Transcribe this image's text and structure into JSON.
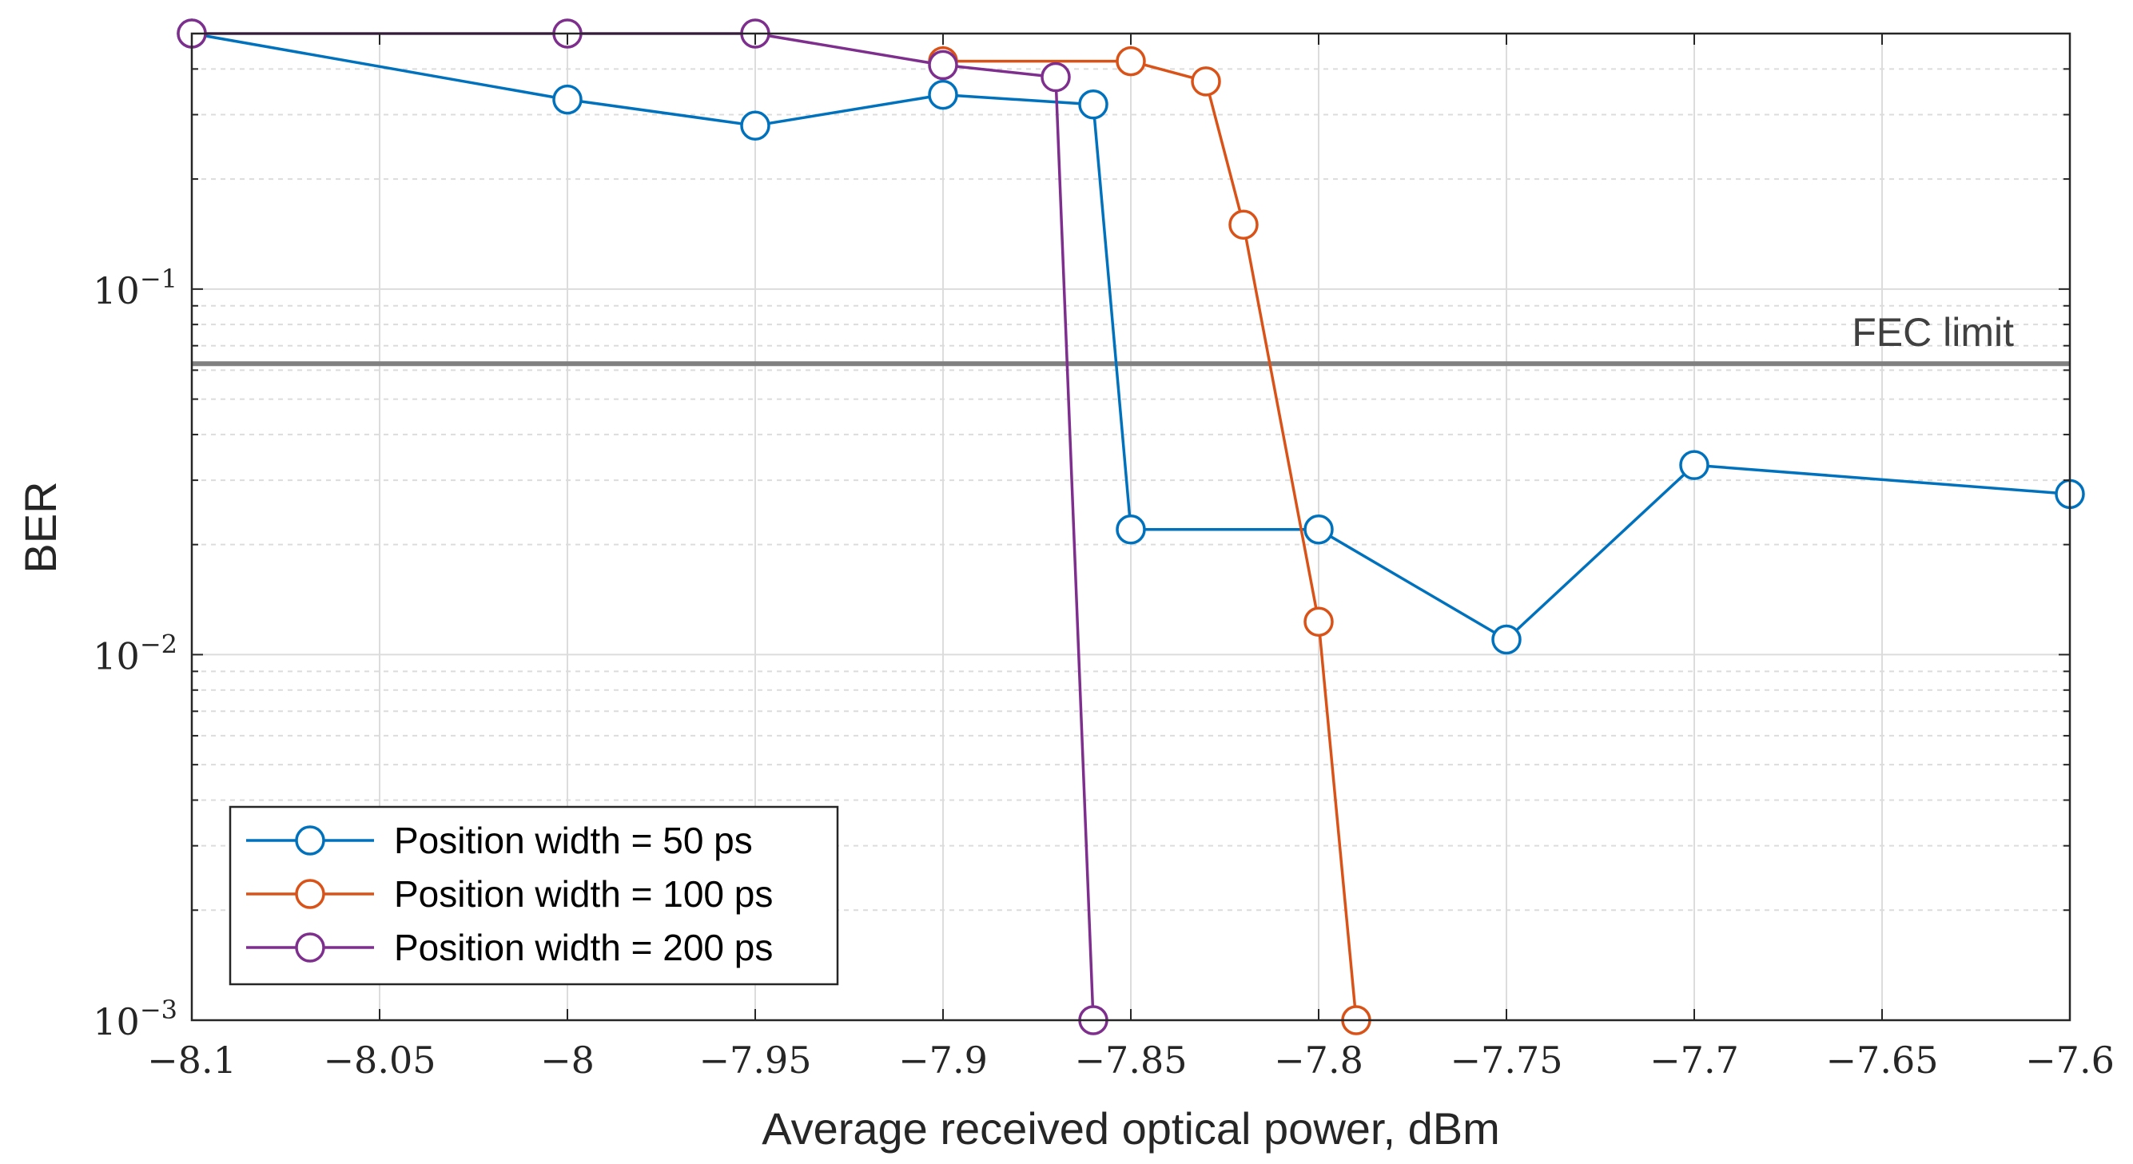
{
  "chart_data": {
    "type": "line",
    "title": "",
    "xlabel": "Average received optical power, dBm",
    "ylabel": "BER",
    "xlim": [
      -8.1,
      -7.6
    ],
    "ylim": [
      0.001,
      0.5
    ],
    "yscale": "log",
    "grid": true,
    "x_ticks": [
      -8.1,
      -8.05,
      -8,
      -7.95,
      -7.9,
      -7.85,
      -7.8,
      -7.75,
      -7.7,
      -7.65,
      -7.6
    ],
    "x_tick_labels": [
      "−8.1",
      "−8.05",
      "−8",
      "−7.95",
      "−7.9",
      "−7.85",
      "−7.8",
      "−7.75",
      "−7.7",
      "−7.65",
      "−7.6"
    ],
    "y_ticks": [
      {
        "value": 0.1,
        "base": "10",
        "exp": "−1"
      },
      {
        "value": 0.01,
        "base": "10",
        "exp": "−2"
      },
      {
        "value": 0.001,
        "base": "10",
        "exp": "−3"
      }
    ],
    "legend_position": "bottom-left",
    "series": [
      {
        "name": "Position width = 50 ps",
        "color": "#0072BD",
        "x": [
          -8.1,
          -8.0,
          -7.95,
          -7.9,
          -7.86,
          -7.85,
          -7.8,
          -7.75,
          -7.7,
          -7.6
        ],
        "y": [
          0.5,
          0.33,
          0.28,
          0.34,
          0.32,
          0.022,
          0.022,
          0.011,
          0.033,
          0.0275
        ]
      },
      {
        "name": "Position width = 100 ps",
        "color": "#D95319",
        "x": [
          -7.9,
          -7.85,
          -7.83,
          -7.82,
          -7.8,
          -7.79
        ],
        "y": [
          0.42,
          0.42,
          0.37,
          0.15,
          0.0123,
          0.001
        ]
      },
      {
        "name": "Position width = 200 ps",
        "color": "#7E2F8E",
        "x": [
          -8.1,
          -8.0,
          -7.95,
          -7.9,
          -7.87,
          -7.86
        ],
        "y": [
          0.5,
          0.5,
          0.5,
          0.41,
          0.38,
          0.001
        ]
      }
    ],
    "annotations": [
      {
        "text": "FEC limit",
        "y": 0.0625,
        "color": "#808080"
      }
    ]
  }
}
